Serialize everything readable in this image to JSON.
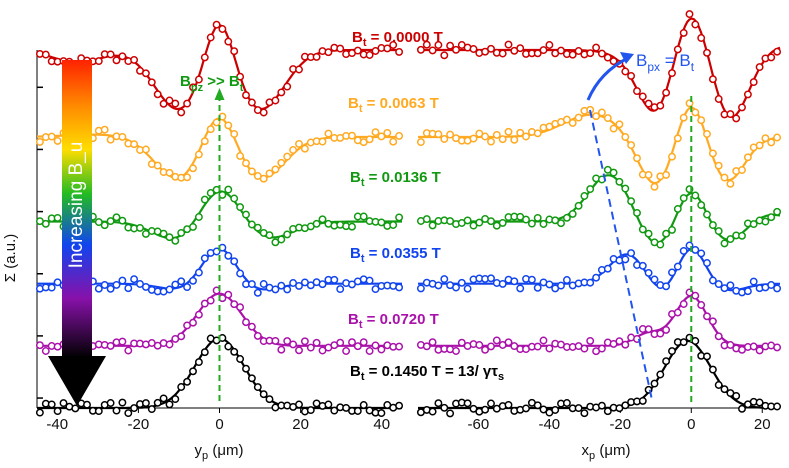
{
  "chart_data": {
    "type": "line",
    "title": "",
    "ylabel": "Σ (a.u.)",
    "arrow_label": "Increasing B_u",
    "panels": [
      {
        "name": "left",
        "xlabel": "y_p (μm)",
        "xlabel_main": "y",
        "xlabel_sub": "p",
        "xlabel_unit": " (μm)",
        "xlim": [
          -45,
          45
        ],
        "ticks": [
          -40,
          -20,
          0,
          20,
          40
        ]
      },
      {
        "name": "right",
        "xlabel": "x_p (μm)",
        "xlabel_main": "x",
        "xlabel_sub": "p",
        "xlabel_unit": " (μm)",
        "xlim": [
          -77,
          25
        ],
        "ticks": [
          -60,
          -40,
          -20,
          0,
          20
        ]
      }
    ],
    "ylim": [
      0,
      7.2
    ],
    "series": [
      {
        "name": "B_t = 0.0000 T",
        "label_main": "B",
        "label_sub": "t",
        "label_value": " = 0.0000 T",
        "color": "#cc0000",
        "offset": 6.25
      },
      {
        "name": "B_t = 0.0063 T",
        "label_main": "B",
        "label_sub": "t",
        "label_value": " = 0.0063 T",
        "color": "#ffaa22",
        "offset": 5.0
      },
      {
        "name": "B_t = 0.0136 T",
        "label_main": "B",
        "label_sub": "t",
        "label_value": " = 0.0136 T",
        "color": "#119911",
        "offset": 3.75
      },
      {
        "name": "B_t = 0.0355 T",
        "label_main": "B",
        "label_sub": "t",
        "label_value": " = 0.0355 T",
        "color": "#1144ee",
        "offset": 2.5
      },
      {
        "name": "B_t = 0.0720 T",
        "label_main": "B",
        "label_sub": "t",
        "label_value": " = 0.0720 T",
        "color": "#aa11aa",
        "offset": 1.25
      },
      {
        "name": "B_t = 0.1450 T = 13/ γτ_s",
        "label_main": "B",
        "label_sub": "t",
        "label_value": " = 0.1450 T = 13/ γτ",
        "label_tail_sub": "s",
        "color": "#000000",
        "offset": 0.0
      }
    ],
    "annotations": {
      "bpz": {
        "main": "B",
        "sub": "pz",
        "rest": " >> B",
        "sub2": "t"
      },
      "bpx": {
        "main": "B",
        "sub": "px",
        "rest": " = B",
        "sub2": "t"
      }
    }
  }
}
